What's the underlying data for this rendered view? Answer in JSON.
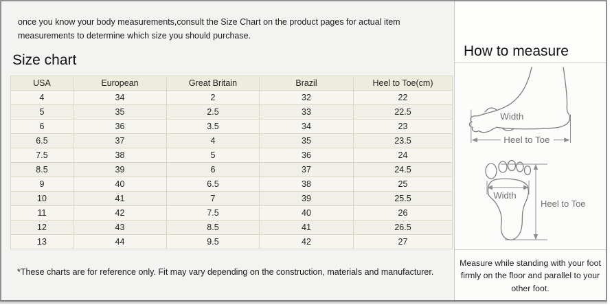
{
  "intro": {
    "text": "once you know your body measurements,consult the Size Chart on the product pages for actual item measurements to determine which size you should purchase."
  },
  "size_chart": {
    "title": "Size chart",
    "columns": [
      "USA",
      "European",
      "Great Britain",
      "Brazil",
      "Heel to Toe(cm)"
    ],
    "rows": [
      [
        "4",
        "34",
        "2",
        "32",
        "22"
      ],
      [
        "5",
        "35",
        "2.5",
        "33",
        "22.5"
      ],
      [
        "6",
        "36",
        "3.5",
        "34",
        "23"
      ],
      [
        "6.5",
        "37",
        "4",
        "35",
        "23.5"
      ],
      [
        "7.5",
        "38",
        "5",
        "36",
        "24"
      ],
      [
        "8.5",
        "39",
        "6",
        "37",
        "24.5"
      ],
      [
        "9",
        "40",
        "6.5",
        "38",
        "25"
      ],
      [
        "10",
        "41",
        "7",
        "39",
        "25.5"
      ],
      [
        "11",
        "42",
        "7.5",
        "40",
        "26"
      ],
      [
        "12",
        "43",
        "8.5",
        "41",
        "26.5"
      ],
      [
        "13",
        "44",
        "9.5",
        "42",
        "27"
      ]
    ],
    "footnote": "*These charts are for reference only. Fit may vary depending on the construction, materials and manufacturer."
  },
  "how_to_measure": {
    "title": "How to measure",
    "side_diagram": {
      "width_label": "Width",
      "length_label": "Heel to Toe"
    },
    "top_diagram": {
      "width_label": "Width",
      "length_label": "Heel to Toe"
    },
    "note": "Measure while standing with your foot firmly on the floor and parallel to your other foot."
  },
  "colors": {
    "table_border": "#d9d8c4",
    "table_header_bg": "#eeecdd",
    "table_cell_bg": "#f5f4ef",
    "frame_border": "#8f8f8f",
    "diagram_line": "#7f7f7f"
  }
}
